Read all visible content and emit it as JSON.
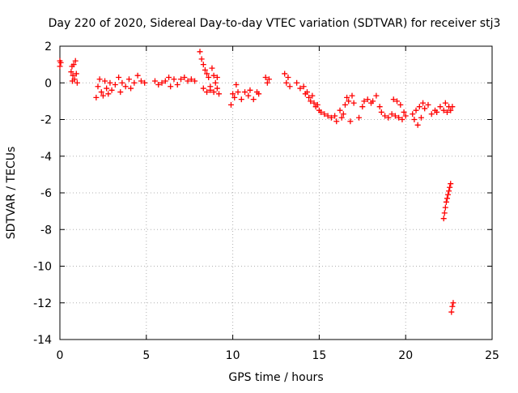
{
  "chart_data": {
    "type": "scatter",
    "title": "Day 220 of 2020, Sidereal Day-to-day VTEC variation (SDTVAR) for receiver stj3",
    "xlabel": "GPS time / hours",
    "ylabel": "SDTVAR / TECUs",
    "xlim": [
      0,
      25
    ],
    "ylim": [
      -14,
      2
    ],
    "xticks": [
      0,
      5,
      10,
      15,
      20,
      25
    ],
    "yticks": [
      2,
      0,
      -2,
      -4,
      -6,
      -8,
      -10,
      -12,
      -14
    ],
    "grid": true,
    "marker": "+",
    "color": "#ff0000",
    "series": [
      {
        "points": [
          [
            0.0,
            1.2
          ],
          [
            0.0,
            0.9
          ],
          [
            0.05,
            1.1
          ],
          [
            0.65,
            0.6
          ],
          [
            0.7,
            0.9
          ],
          [
            0.75,
            0.4
          ],
          [
            0.8,
            1.0
          ],
          [
            0.85,
            0.2
          ],
          [
            0.9,
            1.2
          ],
          [
            0.95,
            0.5
          ],
          [
            1.0,
            0.0
          ],
          [
            0.72,
            0.1
          ],
          [
            2.1,
            -0.8
          ],
          [
            2.2,
            -0.2
          ],
          [
            2.3,
            0.2
          ],
          [
            2.4,
            -0.5
          ],
          [
            2.5,
            -0.7
          ],
          [
            2.6,
            0.1
          ],
          [
            2.7,
            -0.3
          ],
          [
            2.8,
            -0.6
          ],
          [
            2.9,
            0.0
          ],
          [
            3.0,
            -0.4
          ],
          [
            3.2,
            -0.1
          ],
          [
            3.4,
            0.3
          ],
          [
            3.5,
            -0.5
          ],
          [
            3.6,
            0.0
          ],
          [
            3.8,
            -0.2
          ],
          [
            4.0,
            0.2
          ],
          [
            4.1,
            -0.3
          ],
          [
            4.3,
            0.0
          ],
          [
            4.5,
            0.4
          ],
          [
            4.7,
            0.1
          ],
          [
            4.9,
            0.0
          ],
          [
            5.5,
            0.1
          ],
          [
            5.7,
            -0.1
          ],
          [
            5.9,
            0.0
          ],
          [
            6.1,
            0.1
          ],
          [
            6.3,
            0.3
          ],
          [
            6.4,
            -0.2
          ],
          [
            6.6,
            0.2
          ],
          [
            6.8,
            -0.1
          ],
          [
            7.0,
            0.2
          ],
          [
            7.2,
            0.3
          ],
          [
            7.4,
            0.1
          ],
          [
            7.6,
            0.2
          ],
          [
            7.8,
            0.1
          ],
          [
            8.1,
            1.7
          ],
          [
            8.2,
            1.3
          ],
          [
            8.3,
            1.0
          ],
          [
            8.4,
            0.7
          ],
          [
            8.5,
            0.5
          ],
          [
            8.6,
            0.3
          ],
          [
            8.7,
            -0.2
          ],
          [
            8.8,
            0.8
          ],
          [
            8.9,
            0.4
          ],
          [
            9.0,
            0.0
          ],
          [
            9.1,
            -0.3
          ],
          [
            8.3,
            -0.3
          ],
          [
            8.5,
            -0.5
          ],
          [
            8.7,
            -0.4
          ],
          [
            8.9,
            -0.5
          ],
          [
            9.1,
            0.3
          ],
          [
            9.2,
            -0.6
          ],
          [
            9.9,
            -1.2
          ],
          [
            10.0,
            -0.6
          ],
          [
            10.1,
            -0.8
          ],
          [
            10.2,
            -0.1
          ],
          [
            10.3,
            -0.5
          ],
          [
            10.5,
            -0.9
          ],
          [
            10.7,
            -0.5
          ],
          [
            10.9,
            -0.7
          ],
          [
            11.0,
            -0.4
          ],
          [
            11.2,
            -0.9
          ],
          [
            11.4,
            -0.5
          ],
          [
            11.5,
            -0.6
          ],
          [
            11.9,
            0.3
          ],
          [
            12.0,
            0.0
          ],
          [
            12.1,
            0.2
          ],
          [
            13.0,
            0.5
          ],
          [
            13.1,
            0.0
          ],
          [
            13.2,
            0.3
          ],
          [
            13.3,
            -0.2
          ],
          [
            13.7,
            0.0
          ],
          [
            13.9,
            -0.3
          ],
          [
            14.1,
            -0.2
          ],
          [
            14.2,
            -0.6
          ],
          [
            14.3,
            -0.5
          ],
          [
            14.4,
            -0.8
          ],
          [
            14.5,
            -1.0
          ],
          [
            14.6,
            -0.7
          ],
          [
            14.7,
            -1.1
          ],
          [
            14.8,
            -1.3
          ],
          [
            14.9,
            -1.2
          ],
          [
            15.0,
            -1.5
          ],
          [
            15.1,
            -1.6
          ],
          [
            15.3,
            -1.7
          ],
          [
            15.5,
            -1.8
          ],
          [
            15.7,
            -1.9
          ],
          [
            15.9,
            -1.8
          ],
          [
            16.0,
            -2.1
          ],
          [
            16.2,
            -1.5
          ],
          [
            16.3,
            -1.9
          ],
          [
            16.4,
            -1.7
          ],
          [
            16.5,
            -1.2
          ],
          [
            16.6,
            -0.8
          ],
          [
            16.7,
            -1.0
          ],
          [
            16.8,
            -2.1
          ],
          [
            16.9,
            -0.7
          ],
          [
            17.0,
            -1.1
          ],
          [
            17.3,
            -1.9
          ],
          [
            17.5,
            -1.3
          ],
          [
            17.6,
            -1.0
          ],
          [
            17.8,
            -0.9
          ],
          [
            18.0,
            -1.1
          ],
          [
            18.1,
            -1.0
          ],
          [
            18.3,
            -0.7
          ],
          [
            18.5,
            -1.3
          ],
          [
            18.6,
            -1.6
          ],
          [
            18.8,
            -1.8
          ],
          [
            19.0,
            -1.9
          ],
          [
            19.2,
            -1.7
          ],
          [
            19.4,
            -1.8
          ],
          [
            19.6,
            -1.9
          ],
          [
            19.8,
            -2.0
          ],
          [
            19.9,
            -1.6
          ],
          [
            20.0,
            -1.8
          ],
          [
            19.3,
            -0.9
          ],
          [
            19.5,
            -1.0
          ],
          [
            19.7,
            -1.2
          ],
          [
            20.4,
            -1.7
          ],
          [
            20.5,
            -2.0
          ],
          [
            20.6,
            -1.5
          ],
          [
            20.7,
            -2.3
          ],
          [
            20.8,
            -1.3
          ],
          [
            20.9,
            -1.9
          ],
          [
            21.0,
            -1.1
          ],
          [
            21.1,
            -1.4
          ],
          [
            21.3,
            -1.2
          ],
          [
            21.5,
            -1.7
          ],
          [
            21.7,
            -1.5
          ],
          [
            21.8,
            -1.6
          ],
          [
            22.0,
            -1.3
          ],
          [
            22.2,
            -1.5
          ],
          [
            22.3,
            -1.1
          ],
          [
            22.4,
            -1.6
          ],
          [
            22.5,
            -1.3
          ],
          [
            22.6,
            -1.5
          ],
          [
            22.7,
            -1.3
          ],
          [
            22.2,
            -7.4
          ],
          [
            22.25,
            -7.1
          ],
          [
            22.3,
            -6.8
          ],
          [
            22.35,
            -6.5
          ],
          [
            22.4,
            -6.3
          ],
          [
            22.45,
            -6.1
          ],
          [
            22.5,
            -5.9
          ],
          [
            22.55,
            -5.7
          ],
          [
            22.6,
            -5.5
          ],
          [
            22.65,
            -12.5
          ],
          [
            22.7,
            -12.2
          ],
          [
            22.75,
            -12.0
          ]
        ]
      }
    ]
  }
}
